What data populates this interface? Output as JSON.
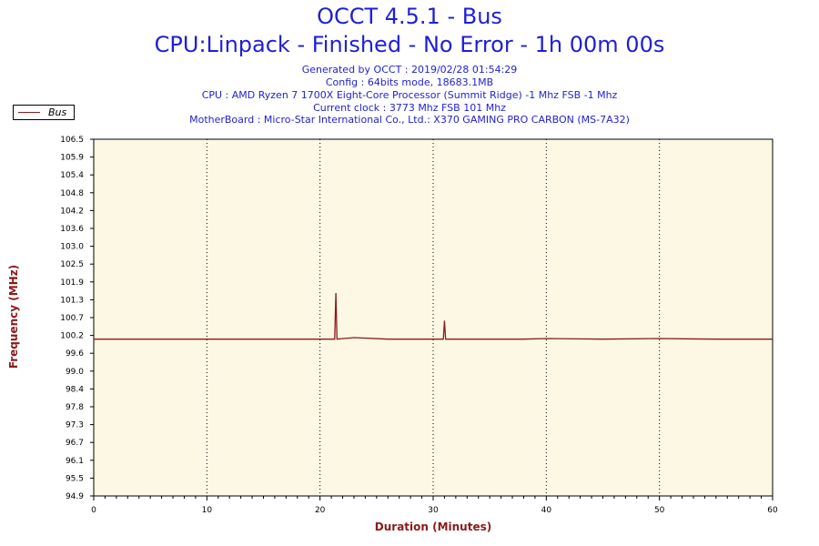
{
  "header": {
    "title": "OCCT 4.5.1 - Bus",
    "subtitle": "CPU:Linpack - Finished - No Error - 1h 00m 00s",
    "info_lines": [
      "Generated by OCCT : 2019/02/28 01:54:29",
      "Config : 64bits mode, 18683.1MB",
      "CPU : AMD Ryzen 7 1700X Eight-Core Processor (Summit Ridge) -1 Mhz FSB -1 Mhz",
      "Current clock : 3773 Mhz FSB 101 Mhz",
      "MotherBoard : Micro-Star International Co., Ltd.: X370 GAMING PRO CARBON (MS-7A32)"
    ]
  },
  "colors": {
    "title": "#1f1fd6",
    "axis_label": "#8b1a1a",
    "series": "#8b1a1a",
    "plot_bg": "#fdf8e4"
  },
  "chart_data": {
    "type": "line",
    "xlabel": "Duration (Minutes)",
    "ylabel": "Frequency (MHz)",
    "xlim": [
      0,
      60
    ],
    "ylim": [
      94.9,
      106.5
    ],
    "x_ticks": [
      0,
      10,
      20,
      30,
      40,
      50,
      60
    ],
    "y_ticks": [
      "94.9",
      "95.5",
      "96.1",
      "96.7",
      "97.3",
      "97.8",
      "98.4",
      "99.0",
      "99.6",
      "100.2",
      "100.7",
      "101.3",
      "101.9",
      "102.5",
      "103.0",
      "103.6",
      "104.2",
      "104.8",
      "105.4",
      "105.9",
      "106.5"
    ],
    "grid": "vertical-dotted",
    "legend": "top-left",
    "series": [
      {
        "name": "Bus",
        "x": [
          0,
          2,
          5,
          8,
          10,
          14,
          18,
          21.3,
          21.4,
          21.5,
          23,
          26,
          30.9,
          31.0,
          31.1,
          34,
          38,
          40,
          45,
          50,
          55,
          60
        ],
        "values": [
          100.0,
          100.0,
          100.0,
          100.0,
          100.0,
          100.0,
          100.0,
          100.0,
          101.5,
          100.0,
          100.05,
          100.0,
          100.0,
          100.6,
          100.0,
          100.0,
          100.0,
          100.02,
          100.0,
          100.02,
          100.0,
          100.0
        ]
      }
    ]
  }
}
